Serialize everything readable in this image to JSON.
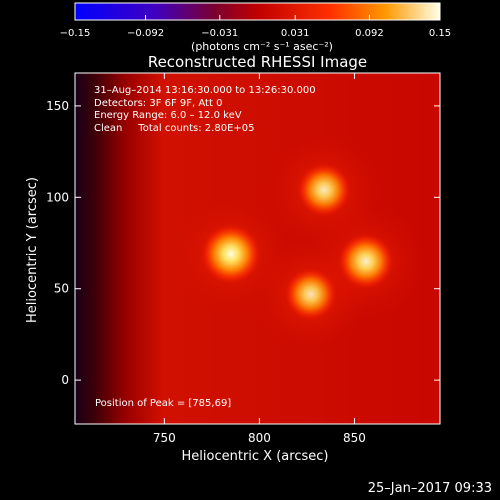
{
  "colorbar": {
    "tick_labels": [
      "−0.15",
      "−0.092",
      "−0.031",
      "0.031",
      "0.092",
      "0.15"
    ],
    "ticks": [
      -0.15,
      -0.092,
      -0.031,
      0.031,
      0.092,
      0.15
    ],
    "range": [
      -0.15,
      0.15
    ],
    "unit_label": "(photons cm⁻² s⁻¹ asec⁻²)"
  },
  "chart_data": {
    "type": "heatmap",
    "title": "Reconstructed RHESSI Image",
    "xlabel": "Heliocentric X (arcsec)",
    "ylabel": "Heliocentric Y (arcsec)",
    "xlim": [
      703,
      895
    ],
    "ylim": [
      -24,
      168
    ],
    "xticks": [
      750,
      800,
      850
    ],
    "yticks": [
      0,
      50,
      100,
      150
    ],
    "sources": [
      {
        "x": 785,
        "y": 69,
        "relative_intensity": 1.0
      },
      {
        "x": 856,
        "y": 65,
        "relative_intensity": 0.82
      },
      {
        "x": 834,
        "y": 104,
        "relative_intensity": 0.72
      },
      {
        "x": 827,
        "y": 47,
        "relative_intensity": 0.66
      }
    ],
    "annotations": [
      "31–Aug–2014 13:16:30.000 to 13:26:30.000",
      "Detectors: 3F 6F 9F, Att 0",
      "Energy Range: 6.0 – 12.0 keV",
      "Clean",
      "Total counts: 2.80E+05"
    ],
    "peak_label": "Position of Peak = [785,69]"
  },
  "footer": {
    "timestamp": "25–Jan–2017 09:33"
  }
}
